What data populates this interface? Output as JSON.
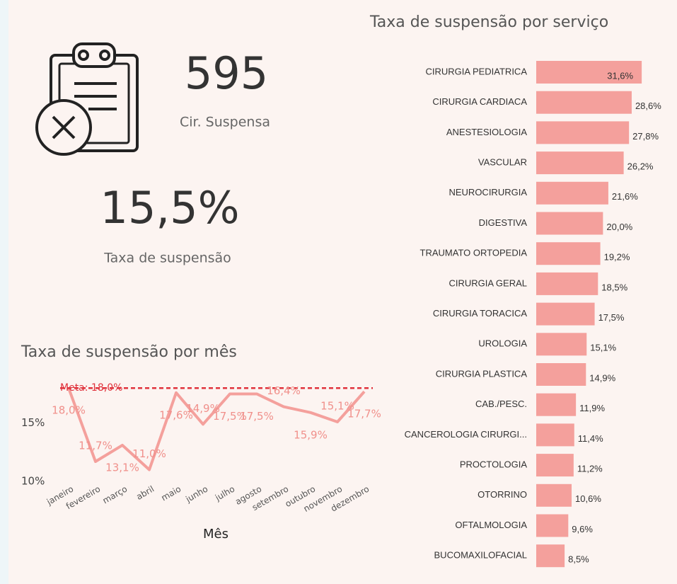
{
  "kpis": [
    {
      "value": "595",
      "label": "Cir. Suspensa"
    },
    {
      "value": "15,5%",
      "label": "Taxa de suspensão"
    }
  ],
  "chart_data": [
    {
      "type": "barh",
      "title": "Taxa de suspensão por serviço",
      "categories": [
        "CIRURGIA PEDIATRICA",
        "CIRURGIA CARDIACA",
        "ANESTESIOLOGIA",
        "VASCULAR",
        "NEUROCIRURGIA",
        "DIGESTIVA",
        "TRAUMATO ORTOPEDIA",
        "CIRURGIA GERAL",
        "CIRURGIA TORACICA",
        "UROLOGIA",
        "CIRURGIA PLASTICA",
        "CAB./PESC.",
        "CANCEROLOGIA CIRURGI...",
        "PROCTOLOGIA",
        "OTORRINO",
        "OFTALMOLOGIA",
        "BUCOMAXILOFACIAL"
      ],
      "values": [
        31.6,
        28.6,
        27.8,
        26.2,
        21.6,
        20.0,
        19.2,
        18.5,
        17.5,
        15.1,
        14.9,
        11.9,
        11.4,
        11.2,
        10.6,
        9.6,
        8.5
      ],
      "value_labels": [
        "31,6%",
        "28,6%",
        "27,8%",
        "26,2%",
        "21,6%",
        "20,0%",
        "19,2%",
        "18,5%",
        "17,5%",
        "15,1%",
        "14,9%",
        "11,9%",
        "11,4%",
        "11,2%",
        "10,6%",
        "9,6%",
        "8,5%"
      ],
      "color": "#f4a09c",
      "xlim": [
        0,
        32
      ]
    },
    {
      "type": "line",
      "title": "Taxa de suspensão por mês",
      "x_label": "Mês",
      "categories": [
        "janeiro",
        "fevereiro",
        "março",
        "abril",
        "maio",
        "junho",
        "julho",
        "agosto",
        "setembro",
        "outubro",
        "novembro",
        "dezembro"
      ],
      "values": [
        18.0,
        11.7,
        13.1,
        11.0,
        17.6,
        14.9,
        17.5,
        17.5,
        16.4,
        15.9,
        15.1,
        17.7
      ],
      "value_labels": [
        "18,0%",
        "11,7%",
        "13,1%",
        "11,0%",
        "17,6%",
        "14,9%",
        "17,5%",
        "17,5%",
        "16,4%",
        "15,9%",
        "15,1%",
        "17,7%"
      ],
      "color": "#f4a09c",
      "target": {
        "value": 18.0,
        "label": "Meta: 18,0%",
        "color": "#e0323c"
      },
      "ylim": [
        10,
        18.5
      ],
      "yticks": [
        {
          "value": 10,
          "label": "10%"
        },
        {
          "value": 15,
          "label": "15%"
        }
      ]
    }
  ]
}
